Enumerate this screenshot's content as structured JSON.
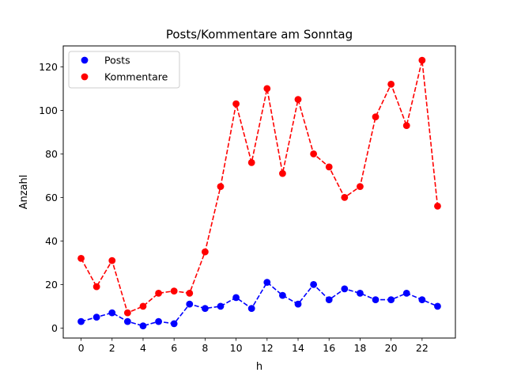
{
  "chart_data": {
    "type": "line",
    "title": "Posts/Kommentare am Sonntag",
    "xlabel": "h",
    "ylabel": "Anzahl",
    "x": [
      0,
      1,
      2,
      3,
      4,
      5,
      6,
      7,
      8,
      9,
      10,
      11,
      12,
      13,
      14,
      15,
      16,
      17,
      18,
      19,
      20,
      21,
      22,
      23
    ],
    "xticks": [
      0,
      2,
      4,
      6,
      8,
      10,
      12,
      14,
      16,
      18,
      20,
      22
    ],
    "yticks": [
      0,
      20,
      40,
      60,
      80,
      100,
      120
    ],
    "xlim": [
      -1.15,
      24.15
    ],
    "ylim": [
      -4.6,
      129.6
    ],
    "grid": false,
    "legend": "top-left",
    "series": [
      {
        "name": "Posts",
        "color": "#0000ff",
        "line_style": "dashed",
        "marker": "circle",
        "values": [
          3,
          5,
          7,
          3,
          1,
          3,
          2,
          11,
          9,
          10,
          14,
          9,
          21,
          15,
          11,
          20,
          13,
          18,
          16,
          13,
          13,
          16,
          13,
          10
        ]
      },
      {
        "name": "Kommentare",
        "color": "#ff0000",
        "line_style": "dashed",
        "marker": "circle",
        "values": [
          32,
          19,
          31,
          7,
          10,
          16,
          17,
          16,
          35,
          65,
          103,
          76,
          110,
          71,
          105,
          80,
          74,
          60,
          65,
          97,
          112,
          93,
          123,
          56
        ]
      }
    ]
  }
}
